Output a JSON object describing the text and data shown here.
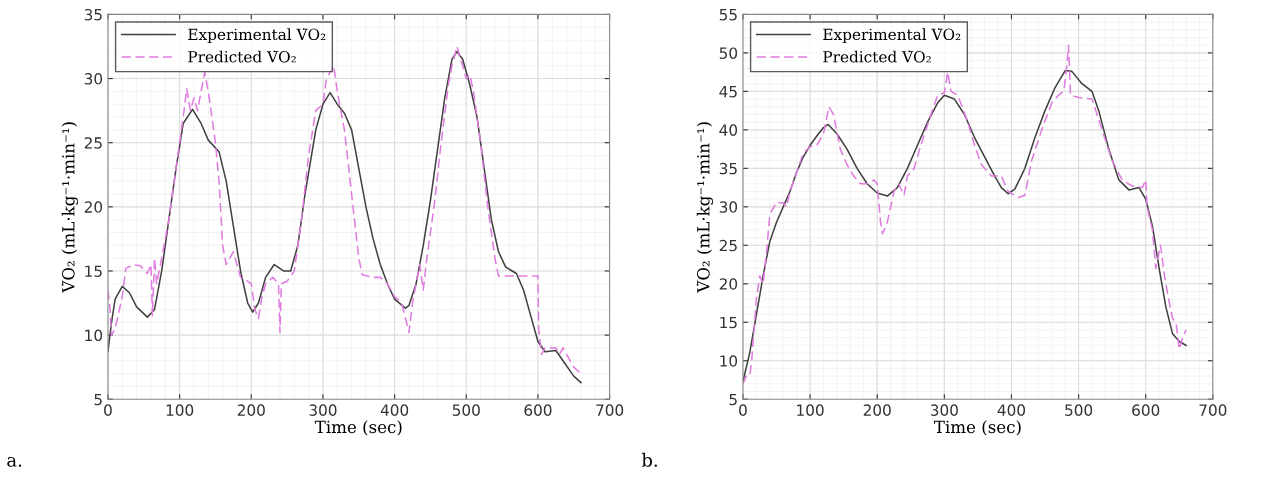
{
  "chart_data": [
    {
      "type": "line",
      "xlabel": "Time (sec)",
      "ylabel": "V̇O₂ (mL·kg⁻¹·min⁻¹)",
      "annotations": [
        "a."
      ],
      "xlim": [
        0,
        700
      ],
      "ylim": [
        5,
        35
      ],
      "xticks": [
        0,
        100,
        200,
        300,
        400,
        500,
        600,
        700
      ],
      "yticks": [
        5,
        10,
        15,
        20,
        25,
        30,
        35
      ],
      "grid": true,
      "legend": "top left",
      "series": [
        {
          "name": "Experimental V̇O₂",
          "color": "#404040",
          "line_style": "solid",
          "x": [
            0,
            5,
            10,
            20,
            30,
            40,
            55,
            65,
            75,
            85,
            95,
            105,
            118,
            130,
            140,
            155,
            165,
            175,
            185,
            195,
            202,
            210,
            220,
            232,
            245,
            255,
            265,
            275,
            290,
            300,
            310,
            320,
            330,
            340,
            350,
            360,
            370,
            380,
            390,
            400,
            415,
            420,
            430,
            440,
            450,
            460,
            470,
            480,
            487,
            495,
            505,
            515,
            525,
            535,
            545,
            555,
            570,
            580,
            590,
            600,
            610,
            625,
            635,
            650,
            660
          ],
          "values": [
            8.7,
            11,
            12.8,
            13.8,
            13.3,
            12.2,
            11.4,
            12,
            15,
            19,
            23,
            26.5,
            27.6,
            26.5,
            25.2,
            24.3,
            22,
            18.5,
            15,
            12.5,
            11.8,
            12.5,
            14.5,
            15.5,
            15,
            15,
            17,
            21,
            26,
            28,
            28.9,
            28,
            27.3,
            26,
            23,
            20,
            17.5,
            15.5,
            14,
            12.8,
            12.1,
            12.3,
            14,
            17,
            20.5,
            24.5,
            28.5,
            31.5,
            32.1,
            31.5,
            29.5,
            27,
            23,
            19,
            16.5,
            15.3,
            14.8,
            13.5,
            11.5,
            9.5,
            8.7,
            8.8,
            8,
            6.8,
            6.3
          ]
        },
        {
          "name": "Predicted V̇O₂",
          "color": "#e07be0",
          "line_style": "dashed",
          "x": [
            0,
            3,
            5,
            10,
            20,
            25,
            35,
            45,
            55,
            60,
            62,
            65,
            68,
            75,
            85,
            95,
            105,
            110,
            115,
            120,
            125,
            130,
            135,
            140,
            150,
            155,
            160,
            165,
            175,
            185,
            195,
            200,
            205,
            210,
            215,
            220,
            230,
            238,
            240,
            242,
            250,
            260,
            270,
            280,
            290,
            300,
            305,
            315,
            320,
            330,
            340,
            350,
            355,
            370,
            380,
            390,
            400,
            410,
            420,
            425,
            430,
            435,
            440,
            445,
            455,
            465,
            475,
            480,
            487,
            495,
            500,
            505,
            510,
            520,
            530,
            540,
            545,
            560,
            600,
            601,
            605,
            610,
            625,
            630,
            635,
            650,
            660
          ],
          "values": [
            13.5,
            12,
            10,
            10.5,
            13,
            15.2,
            15.5,
            15.4,
            14.8,
            15.5,
            11.5,
            16,
            14,
            16,
            19,
            23,
            27,
            29.2,
            27.5,
            28.5,
            27.5,
            29,
            30.5,
            29,
            25,
            22,
            17,
            15.5,
            16.5,
            14.5,
            14.2,
            14,
            12,
            11.3,
            13,
            14,
            14.5,
            14,
            10.2,
            14,
            14.2,
            15,
            19,
            24,
            27.5,
            28,
            30,
            31,
            29,
            26,
            21,
            16,
            14.7,
            14.5,
            14.5,
            14,
            13,
            12.5,
            10.2,
            12.5,
            14,
            15.5,
            13.5,
            16,
            20,
            25,
            29.5,
            31,
            32.5,
            31,
            30,
            30.3,
            29,
            25,
            20,
            16,
            14.6,
            14.6,
            14.6,
            10.5,
            8.5,
            9,
            9,
            8.5,
            9,
            7.5,
            7
          ]
        }
      ]
    },
    {
      "type": "line",
      "xlabel": "Time (sec)",
      "ylabel": "V̇O₂ (mL·kg⁻¹·min⁻¹)",
      "annotations": [
        "b."
      ],
      "xlim": [
        0,
        700
      ],
      "ylim": [
        5,
        55
      ],
      "xticks": [
        0,
        100,
        200,
        300,
        400,
        500,
        600,
        700
      ],
      "yticks": [
        5,
        10,
        15,
        20,
        25,
        30,
        35,
        40,
        45,
        50,
        55
      ],
      "grid": true,
      "legend": "top left",
      "series": [
        {
          "name": "Experimental V̇O₂",
          "color": "#404040",
          "line_style": "solid",
          "x": [
            0,
            10,
            20,
            30,
            40,
            50,
            60,
            70,
            80,
            90,
            100,
            110,
            120,
            127,
            140,
            155,
            170,
            185,
            200,
            215,
            230,
            245,
            260,
            275,
            290,
            300,
            315,
            330,
            345,
            360,
            375,
            385,
            395,
            405,
            420,
            435,
            450,
            465,
            480,
            490,
            505,
            520,
            530,
            545,
            560,
            575,
            590,
            600,
            610,
            620,
            630,
            640,
            650,
            660
          ],
          "values": [
            7.3,
            11,
            16,
            21,
            25.5,
            28,
            30,
            32,
            34.5,
            36.5,
            38,
            39.2,
            40.3,
            40.7,
            39.5,
            37.5,
            35,
            33,
            31.8,
            31.4,
            32.5,
            35,
            38,
            41,
            43.5,
            44.5,
            44,
            42,
            39,
            36.5,
            34,
            32.5,
            31.7,
            32.3,
            35,
            39,
            42.5,
            45.5,
            47.7,
            47.6,
            46,
            45,
            42.5,
            37.5,
            33.5,
            32.2,
            32.5,
            31,
            27.5,
            22,
            17,
            13.5,
            12.5,
            12
          ]
        },
        {
          "name": "Predicted V̇O₂",
          "color": "#e07be0",
          "line_style": "dashed",
          "x": [
            0,
            5,
            10,
            13,
            20,
            25,
            30,
            35,
            40,
            50,
            60,
            65,
            70,
            80,
            90,
            100,
            110,
            120,
            128,
            135,
            145,
            155,
            165,
            175,
            185,
            195,
            200,
            205,
            208,
            215,
            225,
            232,
            240,
            245,
            255,
            265,
            280,
            290,
            300,
            305,
            310,
            320,
            335,
            345,
            355,
            370,
            385,
            395,
            410,
            420,
            430,
            445,
            460,
            470,
            478,
            482,
            485,
            488,
            500,
            520,
            535,
            550,
            565,
            580,
            595,
            600,
            602,
            610,
            615,
            622,
            628,
            632,
            640,
            645,
            650,
            655,
            660
          ],
          "values": [
            7,
            8,
            8,
            10,
            18,
            21,
            20,
            24,
            29,
            30.6,
            30.5,
            30,
            32,
            34.5,
            37,
            37.8,
            38,
            39.5,
            43,
            42,
            37.5,
            35.5,
            34,
            33,
            33,
            33.5,
            33,
            28,
            26.5,
            28,
            32,
            33,
            31.5,
            34,
            35,
            38,
            42,
            44.5,
            44.8,
            47.5,
            45,
            44.5,
            41,
            38,
            35.5,
            34,
            34,
            32,
            31.2,
            31.5,
            36,
            40,
            43.5,
            44.5,
            45,
            48,
            51,
            44.5,
            44.2,
            44,
            40,
            36,
            33.5,
            32.7,
            32.5,
            33.5,
            30,
            27,
            22,
            25,
            21,
            19,
            15.5,
            15,
            11.5,
            13,
            14
          ]
        }
      ]
    }
  ]
}
